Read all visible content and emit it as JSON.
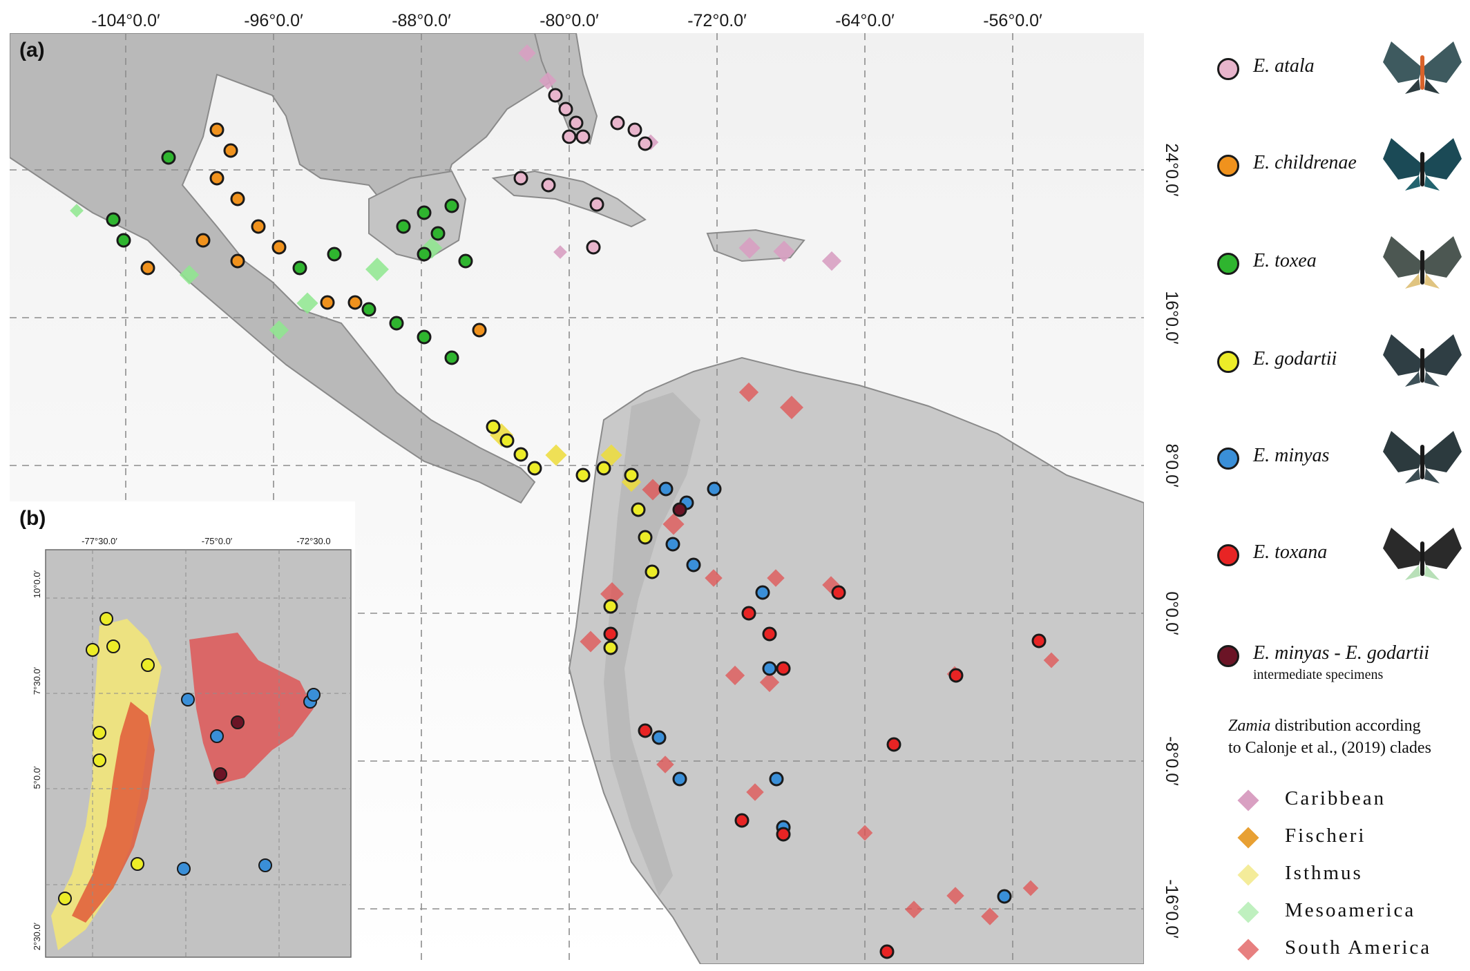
{
  "main_panel": {
    "letter": "(a)",
    "top_ticks": [
      "-104°0.0′",
      "-96°0.0′",
      "-88°0.0′",
      "-80°0.0′",
      "-72°0.0′",
      "-64°0.0′",
      "-56°0.0′"
    ],
    "right_ticks": [
      "24°0.0′",
      "16°0.0′",
      "8°0.0′",
      "0°0.0′",
      "-8°0.0′",
      "-16°0.0′"
    ]
  },
  "inset_panel": {
    "letter": "(b)",
    "top_ticks": [
      "-77°30.0′",
      "-75°0.0′",
      "-72°30.0"
    ],
    "left_ticks": [
      "10°0.0′",
      "7°30.0′",
      "5°0.0′",
      "2°30.0′"
    ]
  },
  "species": [
    {
      "label": "E. atala",
      "color": "#e8b5cc"
    },
    {
      "label": "E. childrenae",
      "color": "#f0921d"
    },
    {
      "label": "E. toxea",
      "color": "#2fb52f"
    },
    {
      "label": "E. godartii",
      "color": "#ecec28"
    },
    {
      "label": "E. minyas",
      "color": "#3a8fd8"
    },
    {
      "label": "E. toxana",
      "color": "#e82424"
    },
    {
      "label": "E. minyas - E. godartii",
      "sublabel": "intermediate specimens",
      "color": "#6b1426"
    }
  ],
  "zamia": {
    "title_italic": "Zamia",
    "title_rest": " distribution according",
    "title_line2": "to Calonje et al., (2019) clades",
    "clades": [
      {
        "label": "Caribbean",
        "color": "#d9a0c2"
      },
      {
        "label": "Fischeri",
        "color": "#e8a033"
      },
      {
        "label": "Isthmus",
        "color": "#f4ec9a"
      },
      {
        "label": "Mesoamerica",
        "color": "#bff0bf"
      },
      {
        "label": "South America",
        "color": "#e78080"
      }
    ]
  }
}
